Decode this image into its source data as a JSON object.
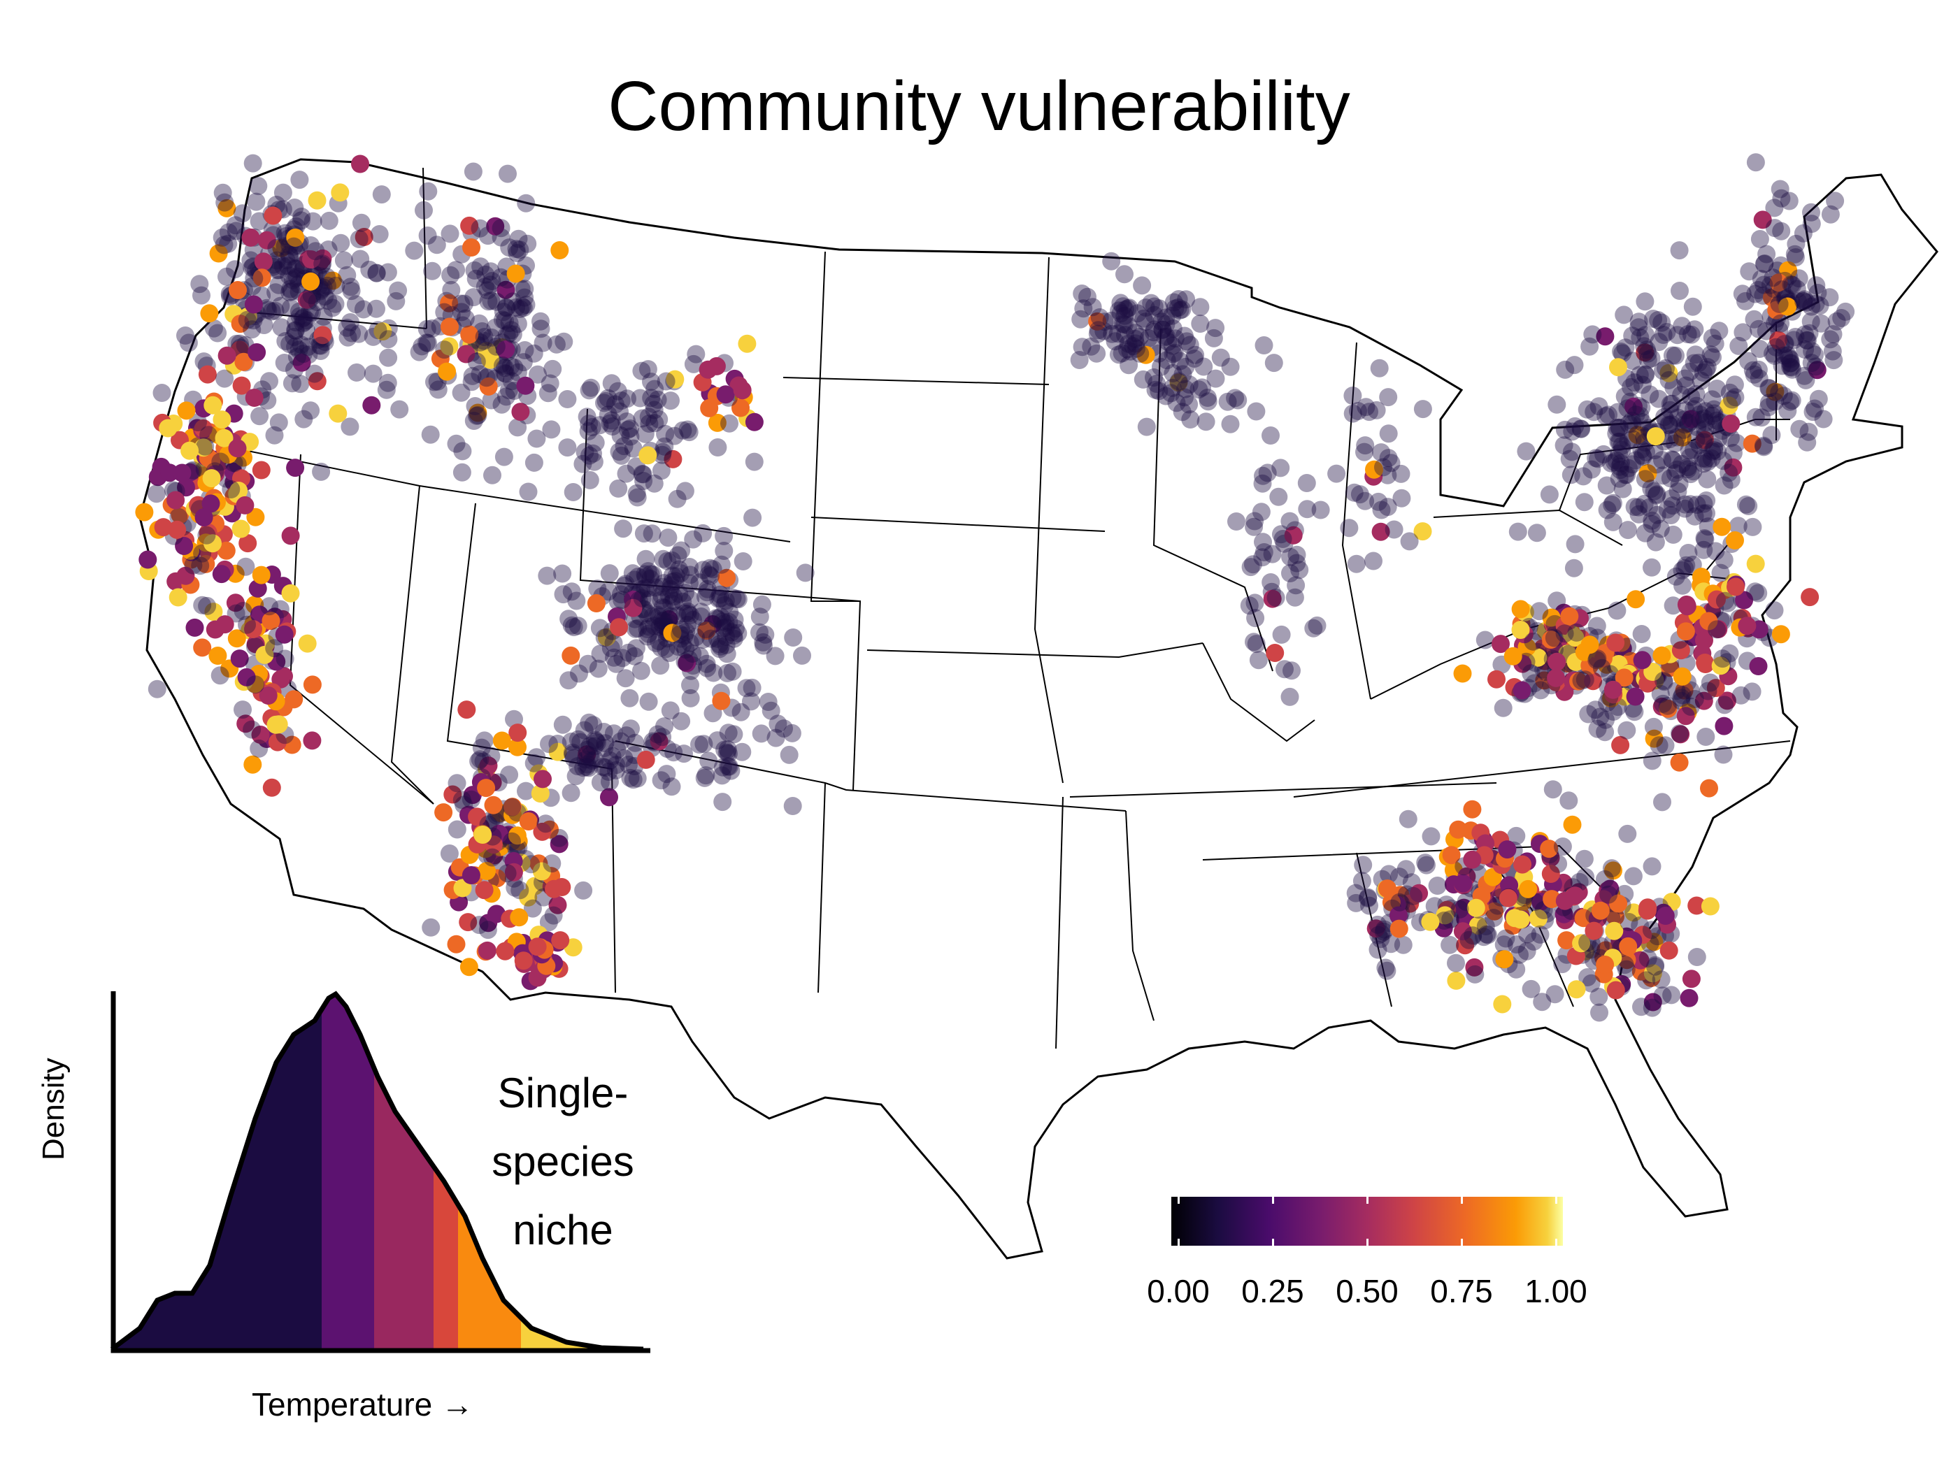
{
  "title": "Community vulnerability",
  "legend": {
    "tick_labels": [
      "0.00",
      "0.25",
      "0.50",
      "0.75",
      "1.00"
    ],
    "range": [
      0,
      1
    ],
    "palette": [
      "#000004",
      "#1b0c41",
      "#4a0c6b",
      "#781c6d",
      "#a52c60",
      "#cf4446",
      "#ed6925",
      "#fb9b06",
      "#f7d13d",
      "#fcffa4"
    ]
  },
  "inset": {
    "ylabel": "Density",
    "xlabel": "Temperature →",
    "note_lines": [
      "Single-",
      "species",
      "niche"
    ],
    "band_colors": [
      "#1b0c41",
      "#5c1270",
      "#99285f",
      "#d8473b",
      "#f98a0f",
      "#f7d13d"
    ]
  },
  "map": {
    "region": "contiguous United States, state boundaries",
    "point_color_scale": "inferno",
    "low_value_color": "#1b0c41",
    "low_value_opacity": 0.4
  }
}
